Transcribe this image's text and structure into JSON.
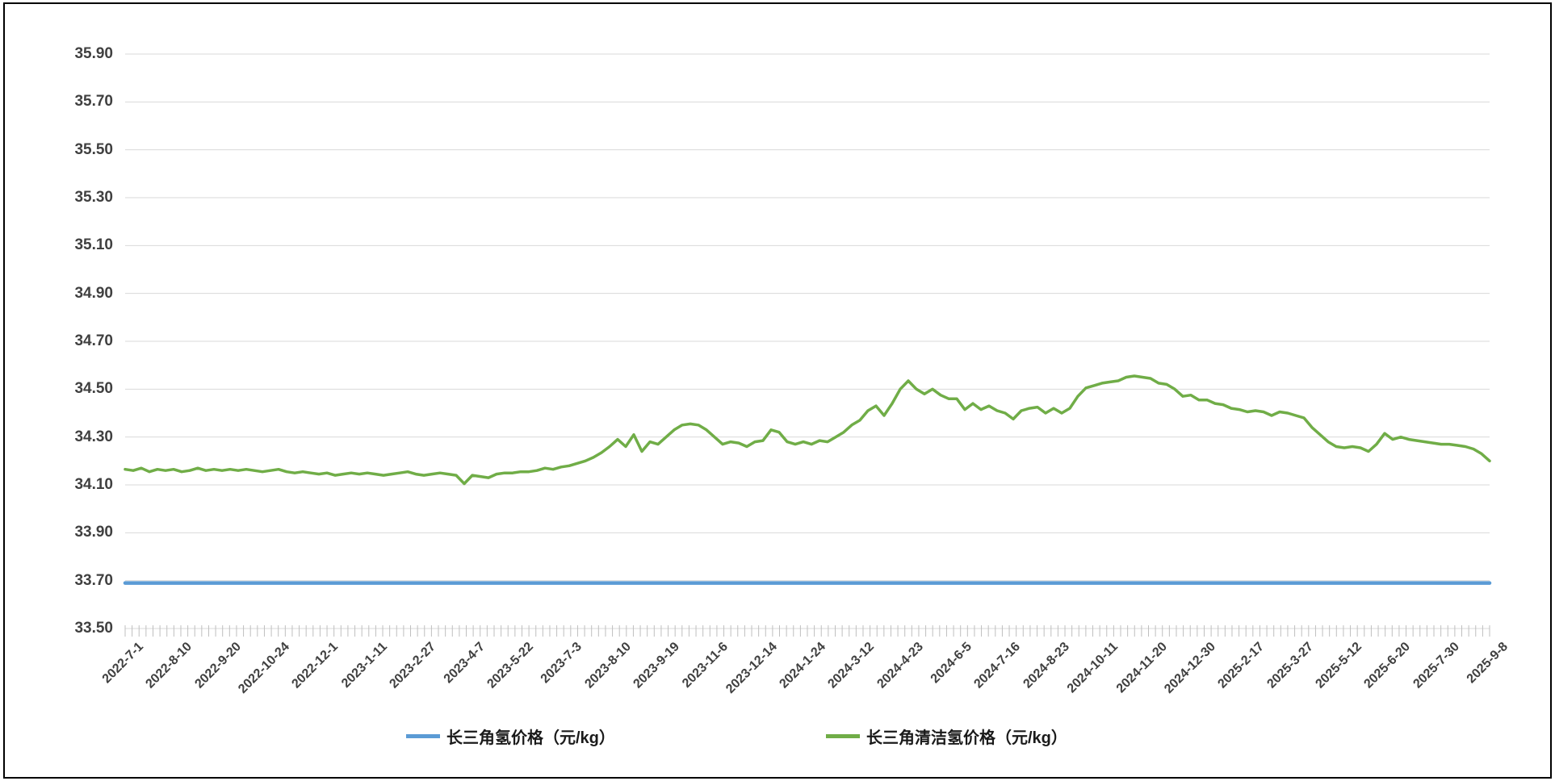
{
  "chart_data": {
    "type": "line",
    "title": "",
    "xlabel": "",
    "ylabel": "",
    "ylim": [
      33.5,
      35.9
    ],
    "y_step": 0.2,
    "grid": true,
    "legend_position": "bottom-center",
    "y_tick_labels": [
      "35.90",
      "35.70",
      "35.50",
      "35.30",
      "35.10",
      "34.90",
      "34.70",
      "34.50",
      "34.30",
      "34.10",
      "33.90",
      "33.70",
      "33.50"
    ],
    "x_tick_labels": [
      "2022-7-1",
      "2022-8-10",
      "2022-9-20",
      "2022-10-24",
      "2022-12-1",
      "2023-1-11",
      "2023-2-27",
      "2023-4-7",
      "2023-5-22",
      "2023-7-3",
      "2023-8-10",
      "2023-9-19",
      "2023-11-6",
      "2023-12-14",
      "2024-1-24",
      "2024-3-12",
      "2024-4-23",
      "2024-6-5",
      "2024-7-16",
      "2024-8-23",
      "2024-10-11",
      "2024-11-20",
      "2024-12-30",
      "2025-2-17",
      "2025-3-27",
      "2025-5-12",
      "2025-6-20",
      "2025-7-30",
      "2025-9-8"
    ],
    "series": [
      {
        "name": "长三角氢价格（元/kg）",
        "color": "#5B9BD5",
        "line_width": 4.5,
        "values": [
          33.69,
          33.69
        ]
      },
      {
        "name": "长三角清洁氢价格（元/kg）",
        "color": "#70AD47",
        "line_width": 3.5,
        "values": [
          34.165,
          34.16,
          34.17,
          34.155,
          34.165,
          34.16,
          34.165,
          34.155,
          34.16,
          34.17,
          34.16,
          34.165,
          34.16,
          34.165,
          34.16,
          34.165,
          34.16,
          34.155,
          34.16,
          34.165,
          34.155,
          34.15,
          34.155,
          34.15,
          34.145,
          34.15,
          34.14,
          34.145,
          34.15,
          34.145,
          34.15,
          34.145,
          34.14,
          34.145,
          34.15,
          34.155,
          34.145,
          34.14,
          34.145,
          34.15,
          34.145,
          34.14,
          34.105,
          34.14,
          34.135,
          34.13,
          34.145,
          34.15,
          34.15,
          34.155,
          34.155,
          34.16,
          34.17,
          34.165,
          34.175,
          34.18,
          34.19,
          34.2,
          34.215,
          34.235,
          34.26,
          34.29,
          34.26,
          34.31,
          34.24,
          34.28,
          34.27,
          34.3,
          34.33,
          34.35,
          34.355,
          34.35,
          34.33,
          34.3,
          34.27,
          34.28,
          34.275,
          34.26,
          34.28,
          34.285,
          34.33,
          34.32,
          34.28,
          34.27,
          34.28,
          34.27,
          34.285,
          34.28,
          34.3,
          34.32,
          34.35,
          34.37,
          34.41,
          34.43,
          34.39,
          34.44,
          34.5,
          34.535,
          34.5,
          34.48,
          34.5,
          34.475,
          34.46,
          34.46,
          34.415,
          34.44,
          34.415,
          34.43,
          34.41,
          34.4,
          34.375,
          34.41,
          34.42,
          34.425,
          34.4,
          34.42,
          34.4,
          34.42,
          34.47,
          34.505,
          34.515,
          34.525,
          34.53,
          34.535,
          34.55,
          34.555,
          34.55,
          34.545,
          34.525,
          34.52,
          34.5,
          34.47,
          34.475,
          34.455,
          34.455,
          34.44,
          34.435,
          34.42,
          34.415,
          34.405,
          34.41,
          34.405,
          34.39,
          34.405,
          34.4,
          34.39,
          34.38,
          34.34,
          34.31,
          34.28,
          34.26,
          34.255,
          34.26,
          34.255,
          34.24,
          34.27,
          34.315,
          34.29,
          34.3,
          34.29,
          34.285,
          34.28,
          34.275,
          34.27,
          34.27,
          34.265,
          34.26,
          34.25,
          34.23,
          34.2
        ]
      }
    ],
    "colors": {
      "gridline": "#D9D9D9",
      "axis_tick": "#BFBFBF",
      "axis_label": "#404040",
      "legend_text": "#1A1A1A",
      "background": "#FFFFFF",
      "border": "#000000"
    }
  }
}
